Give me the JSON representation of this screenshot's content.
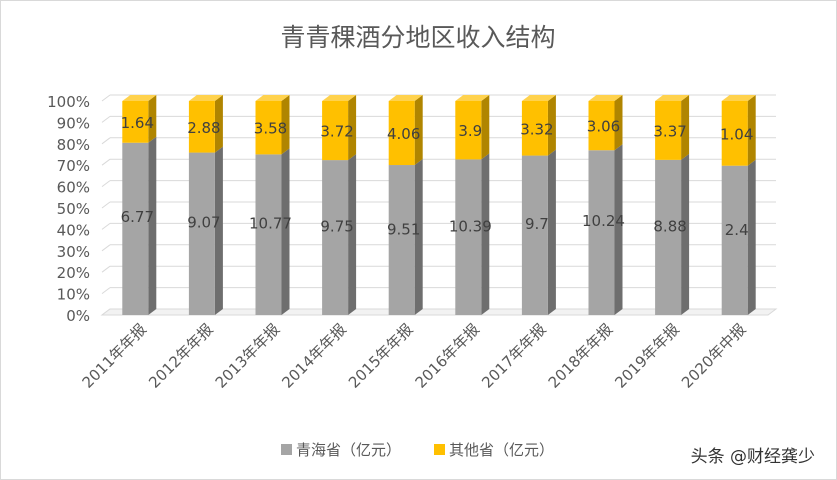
{
  "colors": {
    "series1": "#a5a5a5",
    "series1_side": "#6e6e6e",
    "series1_top": "#bfbfbf",
    "series2": "#ffc000",
    "series2_side": "#b08500",
    "series2_top": "#ffd24d",
    "grid": "#d9d9d9",
    "text": "#595959"
  },
  "watermark": "头条 @财经龚少",
  "chart_data": {
    "type": "bar",
    "stacking": "percent",
    "style": "3d-column",
    "title": "青青稞酒分地区收入结构",
    "categories": [
      "2011年年报",
      "2012年年报",
      "2013年年报",
      "2014年年报",
      "2015年年报",
      "2016年年报",
      "2017年年报",
      "2018年年报",
      "2019年年报",
      "2020年中报"
    ],
    "series": [
      {
        "name": "青海省（亿元）",
        "values": [
          6.77,
          9.07,
          10.77,
          9.75,
          9.51,
          10.39,
          9.7,
          10.24,
          8.88,
          2.4
        ],
        "labels": [
          "6.77",
          "9.07",
          "10.77",
          "9.75",
          "9.51",
          "10.39",
          "9.7",
          "10.24",
          "8.88",
          "2.4"
        ]
      },
      {
        "name": "其他省（亿元）",
        "values": [
          1.64,
          2.88,
          3.58,
          3.72,
          4.06,
          3.9,
          3.32,
          3.06,
          3.37,
          1.04
        ],
        "labels": [
          "1.64",
          "2.88",
          "3.58",
          "3.72",
          "4.06",
          "3.9",
          "3.32",
          "3.06",
          "3.37",
          "1.04"
        ]
      }
    ],
    "y_ticks": [
      "0%",
      "10%",
      "20%",
      "30%",
      "40%",
      "50%",
      "60%",
      "70%",
      "80%",
      "90%",
      "100%"
    ],
    "ylim": [
      0,
      100
    ],
    "grid": true,
    "legend_position": "bottom"
  }
}
